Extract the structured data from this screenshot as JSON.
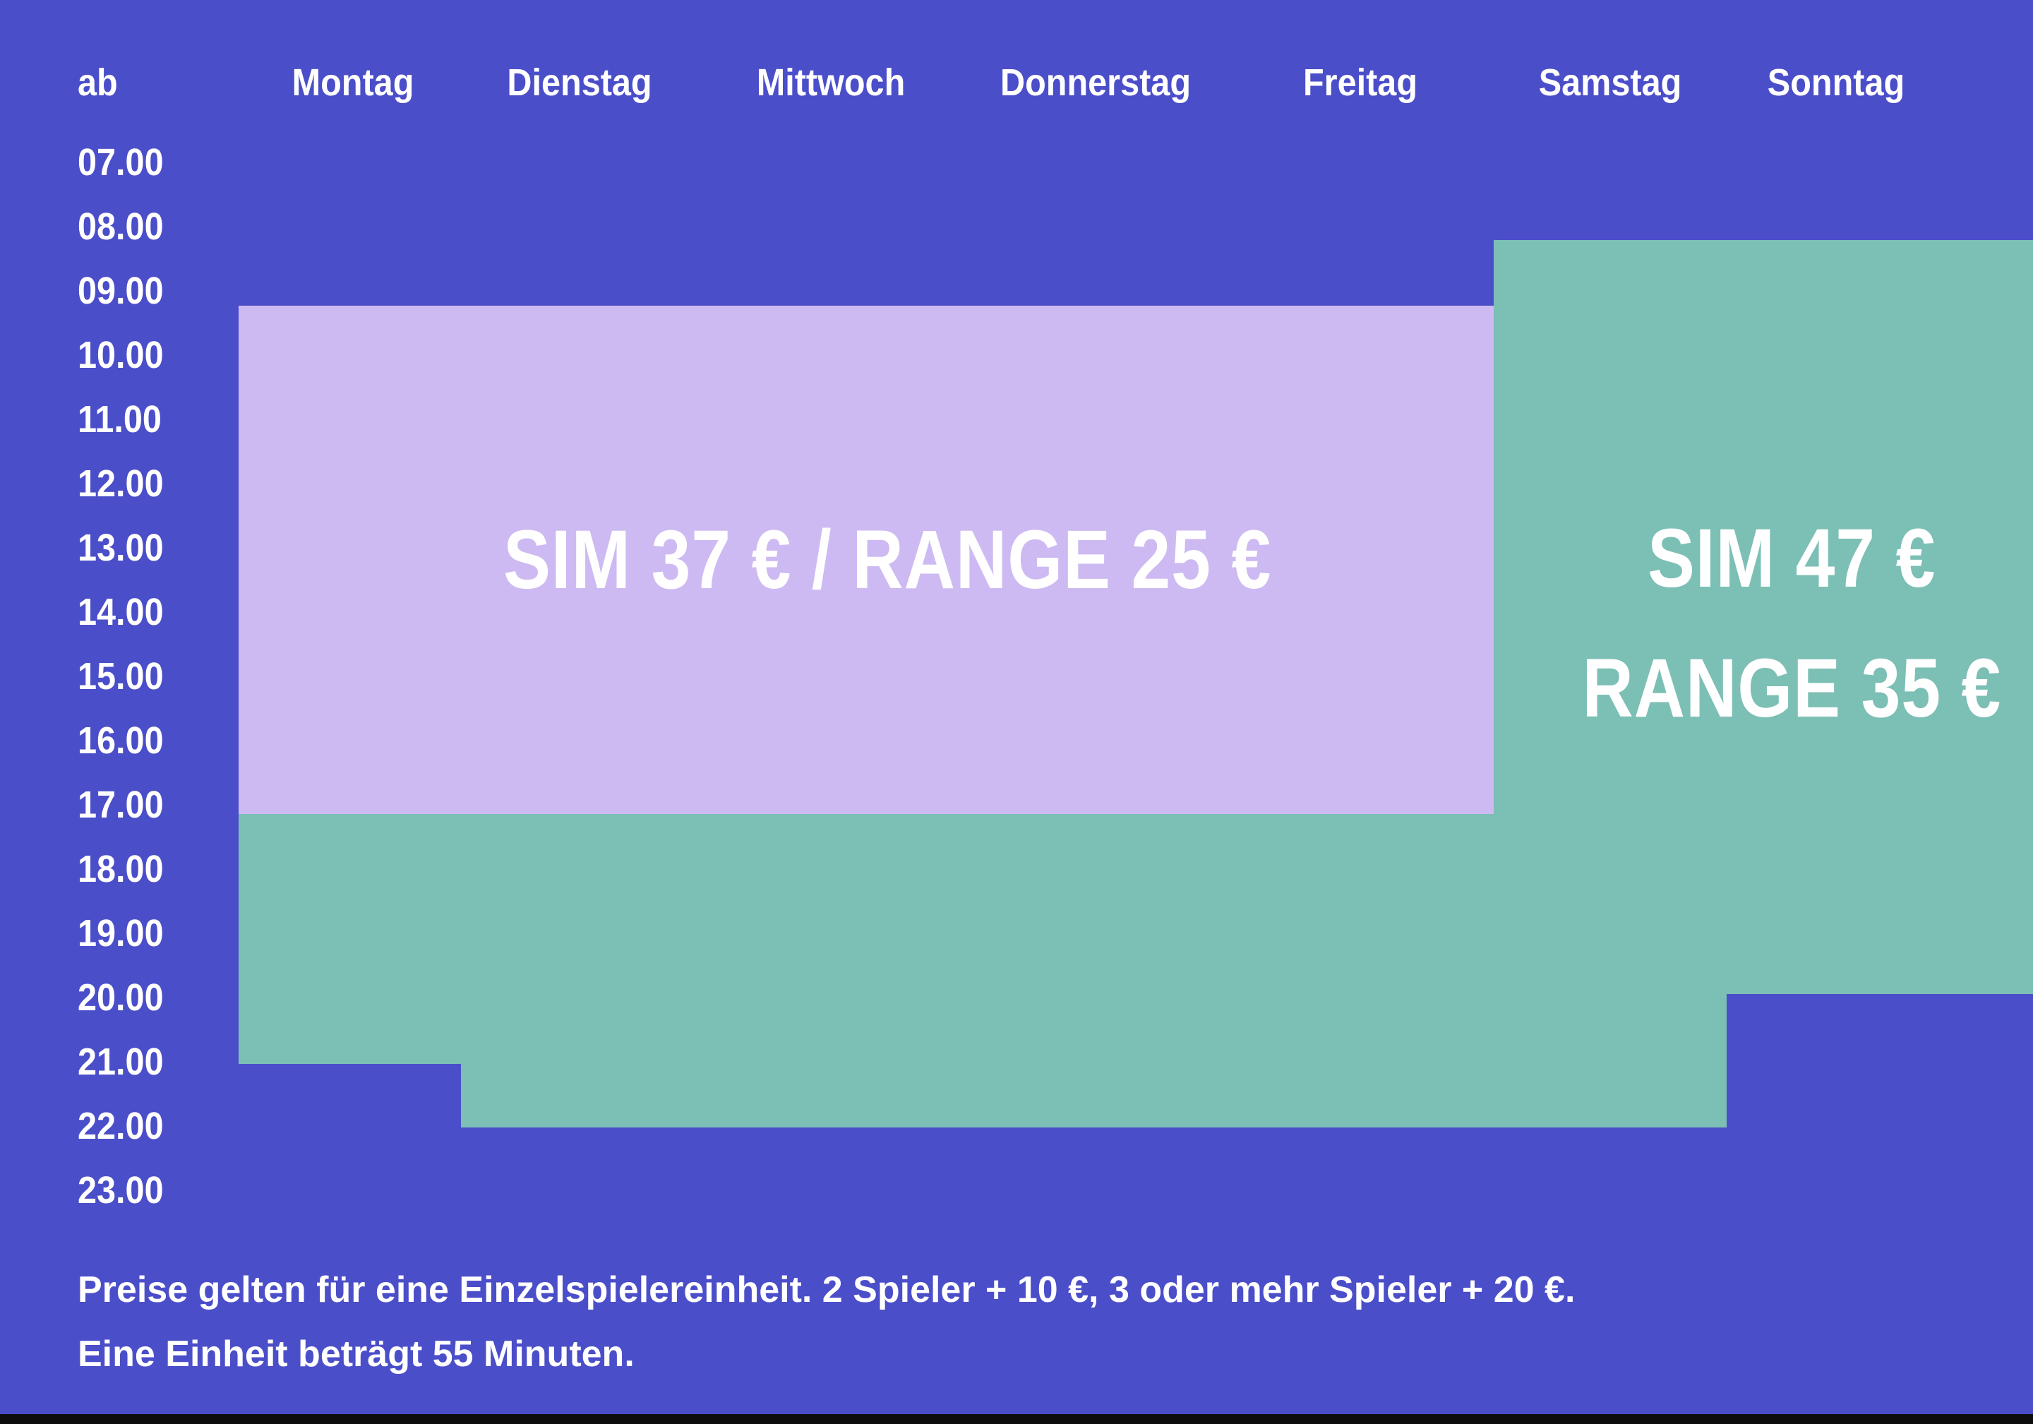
{
  "header": {
    "corner_label": "ab",
    "days": [
      "Montag",
      "Dienstag",
      "Mittwoch",
      "Donnerstag",
      "Freitag",
      "Samstag",
      "Sonntag"
    ]
  },
  "time_axis": {
    "labels": [
      "07.00",
      "08.00",
      "09.00",
      "10.00",
      "11.00",
      "12.00",
      "13.00",
      "14.00",
      "15.00",
      "16.00",
      "17.00",
      "18.00",
      "19.00",
      "20.00",
      "21.00",
      "22.00",
      "23.00"
    ]
  },
  "zones": {
    "weekday_daytime": {
      "label": "SIM 37 € / RANGE 25 €",
      "sim_price_eur": 37,
      "range_price_eur": 25,
      "color": "#cdbaf2"
    },
    "evening_weekend": {
      "label_line1": "SIM 47 €",
      "label_line2": "RANGE 35 €",
      "sim_price_eur": 47,
      "range_price_eur": 35,
      "color": "#7cbfb5"
    }
  },
  "footer": {
    "line1": "Preise gelten für eine Einzelspielereinheit. 2 Spieler + 10 €, 3 oder mehr Spieler + 20 €.",
    "line2": "Eine Einheit beträgt 55 Minuten."
  },
  "colors": {
    "background": "#4b4ec9",
    "zone_weekday_daytime": "#cdbaf2",
    "zone_evening_weekend": "#7cbfb5",
    "text": "#ffffff",
    "bottom_bar": "#0d0d0d"
  },
  "chart_data": {
    "type": "heatmap",
    "subtype": "weekly-price-schedule",
    "x_categories": [
      "Montag",
      "Dienstag",
      "Mittwoch",
      "Donnerstag",
      "Freitag",
      "Samstag",
      "Sonntag"
    ],
    "y_axis_label": "ab",
    "y_ticks": [
      "07.00",
      "08.00",
      "09.00",
      "10.00",
      "11.00",
      "12.00",
      "13.00",
      "14.00",
      "15.00",
      "16.00",
      "17.00",
      "18.00",
      "19.00",
      "20.00",
      "21.00",
      "22.00",
      "23.00"
    ],
    "legend_position": "in-zone-labels",
    "grid": false,
    "zones": [
      {
        "name": "weekday-daytime",
        "label": "SIM 37 € / RANGE 25 €",
        "sim_price_eur": 37,
        "range_price_eur": 25,
        "color": "#cdbaf2",
        "coverage": [
          {
            "days": [
              "Montag",
              "Dienstag",
              "Mittwoch",
              "Donnerstag",
              "Freitag"
            ],
            "from": "09.00",
            "to": "17.00"
          }
        ]
      },
      {
        "name": "evening-weekend",
        "label": "SIM 47 € RANGE 35 €",
        "sim_price_eur": 47,
        "range_price_eur": 35,
        "color": "#7cbfb5",
        "coverage": [
          {
            "days": [
              "Montag"
            ],
            "from": "17.00",
            "to": "21.00"
          },
          {
            "days": [
              "Dienstag",
              "Mittwoch",
              "Donnerstag",
              "Freitag"
            ],
            "from": "17.00",
            "to": "22.00"
          },
          {
            "days": [
              "Samstag"
            ],
            "from": "08.00",
            "to": "22.00"
          },
          {
            "days": [
              "Sonntag"
            ],
            "from": "08.00",
            "to": "20.00"
          }
        ]
      }
    ],
    "notes": [
      "Preise gelten für eine Einzelspielereinheit. 2 Spieler + 10 €, 3 oder mehr Spieler + 20 €.",
      "Eine Einheit beträgt 55 Minuten."
    ]
  }
}
